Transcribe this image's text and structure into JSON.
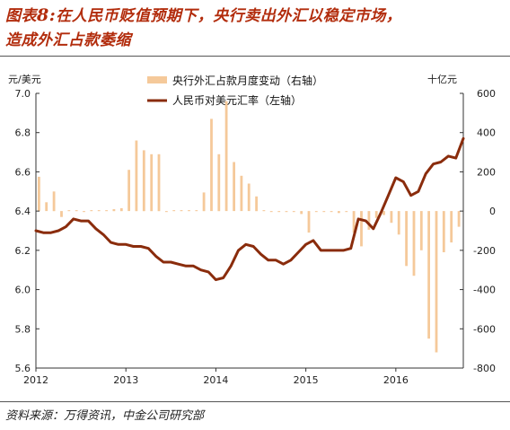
{
  "title": {
    "line1_prefix": "图表",
    "line1_num": "8:",
    "line1_rest": "在人民币贬值预期下，央行卖出外汇以稳定市场，",
    "line2": "造成外汇占款萎缩"
  },
  "source": "资料来源：万得资讯，中金公司研究部",
  "chart_data": {
    "type": "bar+line",
    "left_axis": {
      "unit_label": "元/美元",
      "ylim": [
        5.6,
        7.0
      ],
      "ticks": [
        "7.0",
        "6.8",
        "6.6",
        "6.4",
        "6.2",
        "6.0",
        "5.8",
        "5.6"
      ]
    },
    "right_axis": {
      "unit_label": "十亿元",
      "ylim": [
        -800,
        600
      ],
      "ticks": [
        "600",
        "400",
        "200",
        "0",
        "-200",
        "-400",
        "-600",
        "-800"
      ]
    },
    "x_axis": {
      "range": [
        2012.0,
        2016.75
      ],
      "ticks": [
        2012,
        2013,
        2014,
        2015,
        2016
      ],
      "tick_labels": [
        "2012",
        "2013",
        "2014",
        "2015",
        "2016"
      ]
    },
    "legend": {
      "bar_label": "央行外汇占款月度变动（右轴）",
      "line_label": "人民币对美元汇率（左轴）",
      "placement": "top-center"
    },
    "colors": {
      "bar": "#f5c99a",
      "line": "#8a2c0c",
      "axis": "#333333",
      "title": "#b22c0c"
    },
    "bar_series": {
      "name": "央行外汇占款月度变动（右轴）",
      "x": [
        2012.0,
        2012.083,
        2012.167,
        2012.25,
        2012.333,
        2012.417,
        2012.5,
        2012.583,
        2012.667,
        2012.75,
        2012.833,
        2012.917,
        2013.0,
        2013.083,
        2013.167,
        2013.25,
        2013.333,
        2013.417,
        2013.5,
        2013.583,
        2013.667,
        2013.75,
        2013.833,
        2013.917,
        2014.0,
        2014.083,
        2014.167,
        2014.25,
        2014.333,
        2014.417,
        2014.5,
        2014.583,
        2014.667,
        2014.75,
        2014.833,
        2014.917,
        2015.0,
        2015.083,
        2015.167,
        2015.25,
        2015.333,
        2015.417,
        2015.5,
        2015.583,
        2015.667,
        2015.75,
        2015.833,
        2015.917,
        2016.0,
        2016.083,
        2016.167,
        2016.25,
        2016.333,
        2016.417,
        2016.5,
        2016.583,
        2016.667
      ],
      "values": [
        175,
        45,
        100,
        -30,
        5,
        5,
        -5,
        5,
        5,
        5,
        10,
        15,
        210,
        360,
        310,
        290,
        290,
        -5,
        5,
        5,
        5,
        5,
        95,
        470,
        290,
        560,
        250,
        180,
        140,
        75,
        5,
        -5,
        -5,
        -5,
        -5,
        -15,
        -110,
        -5,
        -5,
        -5,
        -10,
        -5,
        -110,
        -180,
        -95,
        -35,
        -20,
        -60,
        -120,
        -280,
        -330,
        -200,
        -650,
        -720,
        -210,
        -160,
        -80
      ]
    },
    "line_series": {
      "name": "人民币对美元汇率（左轴）",
      "x": [
        2012.0,
        2012.083,
        2012.167,
        2012.25,
        2012.333,
        2012.417,
        2012.5,
        2012.583,
        2012.667,
        2012.75,
        2012.833,
        2012.917,
        2013.0,
        2013.083,
        2013.167,
        2013.25,
        2013.333,
        2013.417,
        2013.5,
        2013.583,
        2013.667,
        2013.75,
        2013.833,
        2013.917,
        2014.0,
        2014.083,
        2014.167,
        2014.25,
        2014.333,
        2014.417,
        2014.5,
        2014.583,
        2014.667,
        2014.75,
        2014.833,
        2014.917,
        2015.0,
        2015.083,
        2015.167,
        2015.25,
        2015.333,
        2015.417,
        2015.5,
        2015.583,
        2015.667,
        2015.75,
        2015.833,
        2015.917,
        2016.0,
        2016.083,
        2016.167,
        2016.25,
        2016.333,
        2016.417,
        2016.5,
        2016.583,
        2016.667,
        2016.75
      ],
      "values": [
        6.3,
        6.29,
        6.29,
        6.3,
        6.32,
        6.36,
        6.35,
        6.35,
        6.31,
        6.28,
        6.24,
        6.23,
        6.23,
        6.22,
        6.22,
        6.21,
        6.17,
        6.14,
        6.14,
        6.13,
        6.12,
        6.12,
        6.1,
        6.09,
        6.05,
        6.06,
        6.12,
        6.2,
        6.23,
        6.22,
        6.18,
        6.15,
        6.15,
        6.13,
        6.15,
        6.19,
        6.23,
        6.25,
        6.2,
        6.2,
        6.2,
        6.2,
        6.21,
        6.36,
        6.35,
        6.31,
        6.39,
        6.48,
        6.57,
        6.55,
        6.48,
        6.5,
        6.59,
        6.64,
        6.65,
        6.68,
        6.67,
        6.77
      ]
    }
  }
}
